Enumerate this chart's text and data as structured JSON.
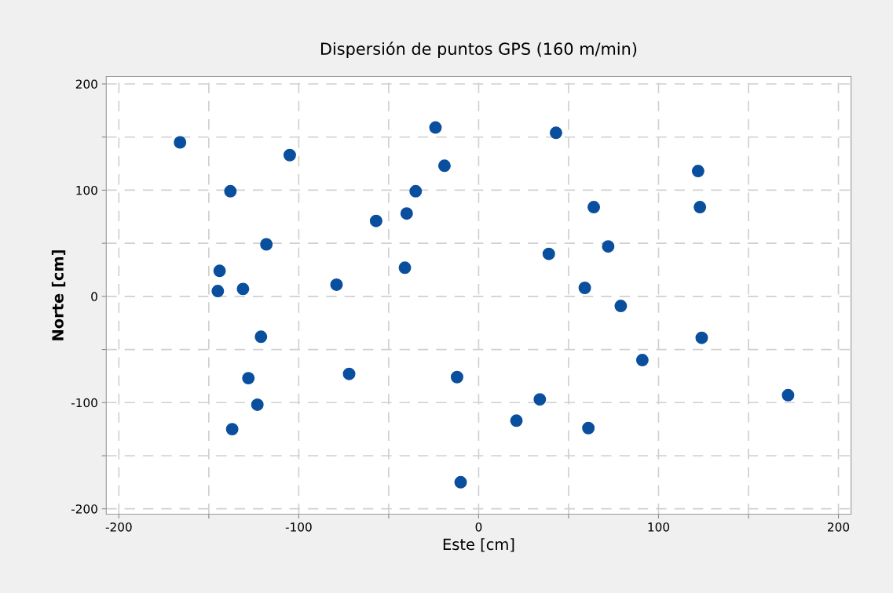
{
  "chart_data": {
    "type": "scatter",
    "title": "Dispersión de puntos GPS (160 m/min)",
    "xlabel": "Este [cm]",
    "ylabel": "Norte [cm]",
    "x": [
      -166,
      -138,
      -105,
      -144,
      -145,
      -131,
      -118,
      -121,
      -128,
      -123,
      -137,
      -79,
      -72,
      -57,
      -41,
      -40,
      -35,
      -24,
      -19,
      -12,
      -10,
      43,
      122,
      123,
      64,
      72,
      39,
      59,
      79,
      124,
      91,
      172,
      34,
      21,
      61
    ],
    "series": [
      {
        "color": "#0a4f9e",
        "values": [
          145,
          99,
          133,
          24,
          5,
          7,
          49,
          -38,
          -77,
          -102,
          -125,
          11,
          -73,
          71,
          27,
          78,
          99,
          159,
          123,
          -76,
          -175,
          154,
          118,
          84,
          84,
          47,
          40,
          8,
          -9,
          -39,
          -60,
          -93,
          -97,
          -117,
          -124
        ]
      }
    ],
    "marker": "circle",
    "grid": true,
    "xlim": [
      -207,
      207
    ],
    "ylim": [
      -205,
      207
    ],
    "xticks": [
      -200,
      {
        "value": -150,
        "label": null
      },
      -100,
      {
        "value": -50,
        "label": null
      },
      0,
      {
        "value": 50,
        "label": null
      },
      100,
      {
        "value": 150,
        "label": null
      },
      200
    ],
    "yticks": [
      -200,
      {
        "value": -150,
        "label": null
      },
      -100,
      {
        "value": -50,
        "label": null
      },
      0,
      {
        "value": 50,
        "label": null
      },
      100,
      {
        "value": 150,
        "label": null
      },
      200
    ]
  }
}
